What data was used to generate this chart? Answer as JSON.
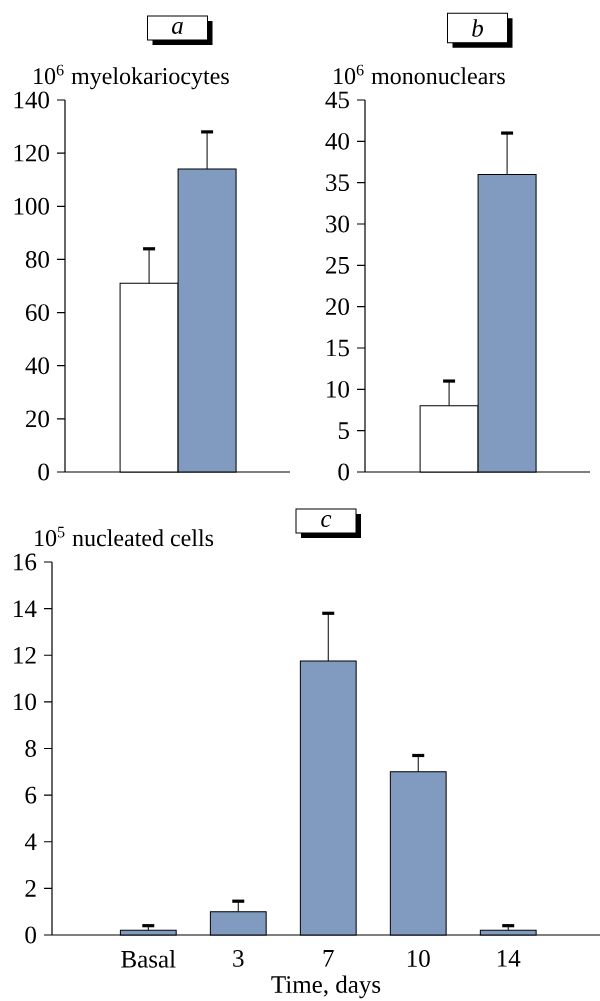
{
  "chart_data": [
    {
      "type": "bar",
      "title": "a",
      "ylabel": "10$^{6}$ myelokariocytes",
      "categories": [
        null,
        null
      ],
      "values": [
        71,
        114
      ],
      "colors": [
        "#ffffff",
        "#819bc0"
      ],
      "errors": [
        [
          71,
          84
        ],
        [
          114,
          128
        ]
      ],
      "ylim": [
        0,
        140
      ],
      "yticks": [
        0,
        20,
        40,
        60,
        80,
        100,
        120,
        140
      ]
    },
    {
      "type": "bar",
      "title": "b",
      "ylabel": "10$^{6}$ mononuclears",
      "categories": [
        null,
        null
      ],
      "values": [
        8,
        36
      ],
      "colors": [
        "#ffffff",
        "#819bc0"
      ],
      "errors": [
        [
          8,
          11
        ],
        [
          36,
          41
        ]
      ],
      "ylim": [
        0,
        45
      ],
      "yticks": [
        0,
        5,
        10,
        15,
        20,
        25,
        30,
        35,
        40,
        45
      ]
    },
    {
      "type": "bar",
      "title": "c",
      "ylabel": "10$^{5}$ nucleated cells",
      "xlabel": "Time, days",
      "categories": [
        "Basal",
        "3",
        "7",
        "10",
        "14"
      ],
      "values": [
        0.2,
        1.0,
        11.75,
        7.0,
        0.2
      ],
      "color": "#819bc0",
      "errors": [
        [
          0.2,
          0.4
        ],
        [
          1.0,
          1.45
        ],
        [
          11.75,
          13.8
        ],
        [
          7.0,
          7.7
        ],
        [
          0.2,
          0.4
        ]
      ],
      "ylim": [
        0,
        16
      ],
      "yticks": [
        0,
        2,
        4,
        6,
        8,
        10,
        12,
        14,
        16
      ]
    }
  ]
}
